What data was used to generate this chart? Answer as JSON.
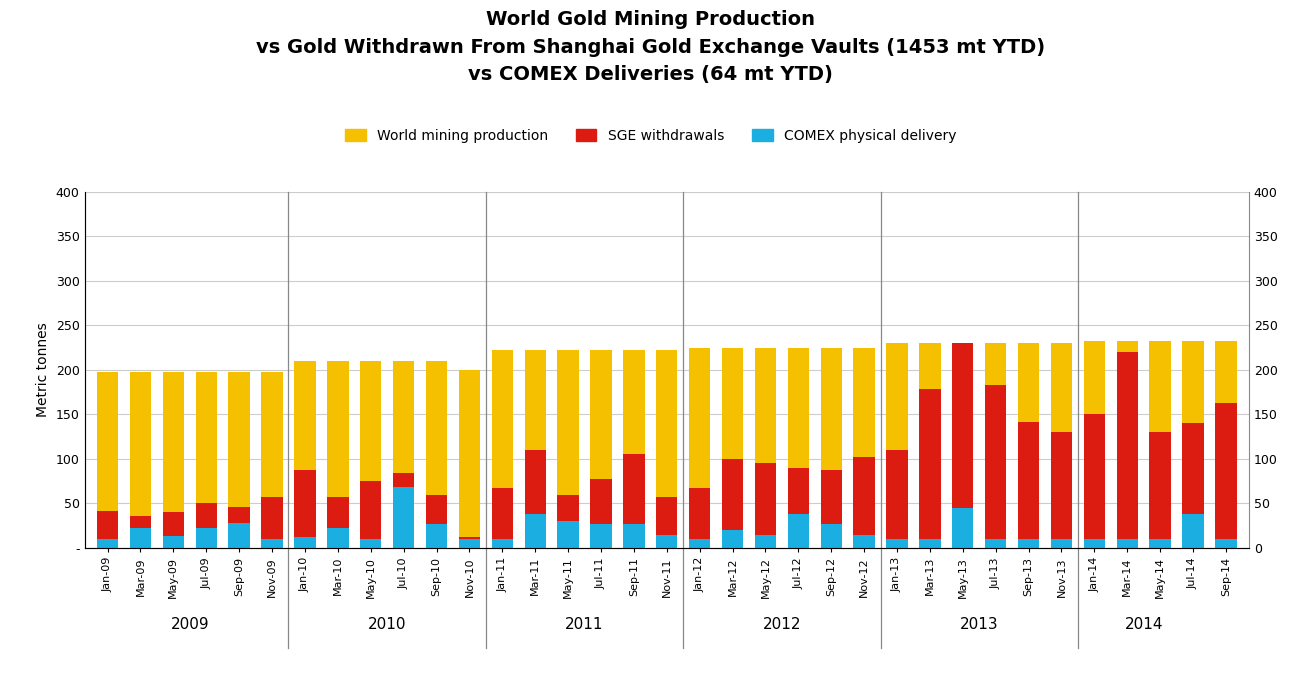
{
  "title_line1": "World Gold Mining Production",
  "title_line2": "vs Gold Withdrawn From Shanghai Gold Exchange Vaults (1453 mt YTD)",
  "title_line3": "vs COMEX Deliveries (64 mt YTD)",
  "ylabel": "Metric tonnes",
  "ylim": [
    0,
    400
  ],
  "yticks": [
    0,
    50,
    100,
    150,
    200,
    250,
    300,
    350,
    400
  ],
  "ytick_labels": [
    "-",
    "50",
    "100",
    "150",
    "200",
    "250",
    "300",
    "350",
    "400"
  ],
  "legend_labels": [
    "World mining production",
    "SGE withdrawals",
    "COMEX physical delivery"
  ],
  "legend_colors": [
    "#F5C000",
    "#DC1C10",
    "#1AAFE0"
  ],
  "background_color": "#FFFFFF",
  "categories": [
    "Jan-09",
    "Mar-09",
    "May-09",
    "Jul-09",
    "Sep-09",
    "Nov-09",
    "Jan-10",
    "Mar-10",
    "May-10",
    "Jul-10",
    "Sep-10",
    "Nov-10",
    "Jan-11",
    "Mar-11",
    "May-11",
    "Jul-11",
    "Sep-11",
    "Nov-11",
    "Jan-12",
    "Mar-12",
    "May-12",
    "Jul-12",
    "Sep-12",
    "Nov-12",
    "Jan-13",
    "Mar-13",
    "May-13",
    "Jul-13",
    "Sep-13",
    "Nov-13",
    "Jan-14",
    "Mar-14",
    "May-14",
    "Jul-14",
    "Sep-14"
  ],
  "year_labels": [
    "2009",
    "2010",
    "2011",
    "2012",
    "2013",
    "2014"
  ],
  "year_center_indices": [
    2.5,
    8.5,
    14.5,
    20.5,
    26.5,
    31.5
  ],
  "year_divider_indices": [
    5.5,
    11.5,
    17.5,
    23.5,
    29.5
  ],
  "world_mining": [
    198,
    198,
    198,
    198,
    198,
    198,
    210,
    210,
    210,
    210,
    210,
    200,
    222,
    222,
    222,
    222,
    222,
    222,
    225,
    225,
    225,
    225,
    225,
    225,
    230,
    230,
    230,
    230,
    230,
    230,
    232,
    232,
    232,
    232,
    232
  ],
  "sge_withdrawals": [
    42,
    36,
    40,
    50,
    46,
    57,
    88,
    57,
    75,
    84,
    60,
    12,
    67,
    110,
    60,
    78,
    105,
    57,
    67,
    100,
    95,
    90,
    88,
    102,
    110,
    178,
    230,
    183,
    142,
    130,
    150,
    220,
    130,
    140,
    163
  ],
  "comex_delivery": [
    10,
    22,
    13,
    22,
    28,
    10,
    12,
    22,
    10,
    68,
    27,
    10,
    10,
    38,
    30,
    27,
    27,
    15,
    10,
    20,
    15,
    38,
    27,
    15,
    10,
    10,
    45,
    10,
    10,
    10,
    10,
    10,
    10,
    38,
    10
  ],
  "gold_color": "#F5C000",
  "sge_color": "#DC1C10",
  "comex_color": "#1AAFE0",
  "bar_width": 0.65,
  "grid_color": "#CCCCCC",
  "title_fontsize": 14,
  "axis_fontsize": 10,
  "tick_fontsize": 9,
  "year_fontsize": 11
}
